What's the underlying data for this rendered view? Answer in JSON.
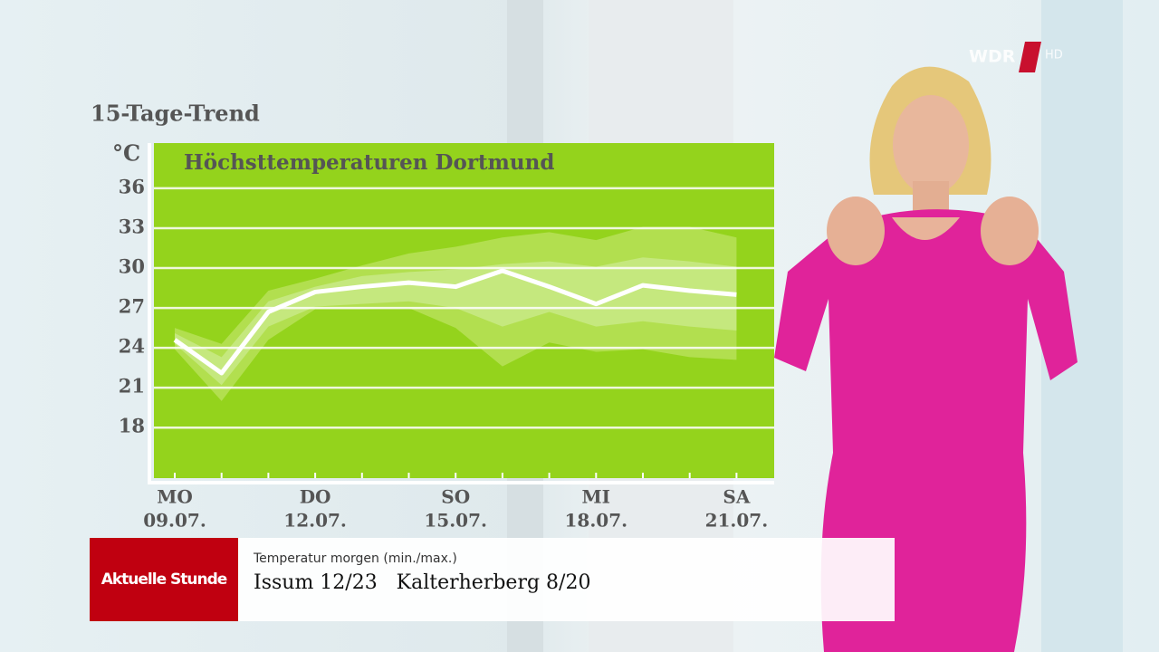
{
  "chart_data": {
    "type": "line",
    "heading": "15-Tage-Trend",
    "y_unit": "°C",
    "title": "Höchsttemperaturen Dortmund",
    "categories": [
      "09.07.",
      null,
      null,
      "12.07.",
      null,
      null,
      "15.07.",
      null,
      null,
      "18.07.",
      null,
      null,
      "21.07."
    ],
    "weekdays": [
      "MO",
      null,
      null,
      "DO",
      null,
      null,
      "SO",
      null,
      null,
      "MI",
      null,
      null,
      "SA"
    ],
    "values": [
      24.6,
      22.1,
      26.7,
      28.2,
      28.6,
      28.9,
      28.6,
      29.8,
      28.6,
      27.3,
      28.7,
      28.3,
      28.0
    ],
    "color": "#ffffff",
    "background": "#94d31c",
    "bands": [
      {
        "color": "#b2df4f",
        "low": [
          23.9,
          20.0,
          24.6,
          26.9,
          26.9,
          27.0,
          25.5,
          22.6,
          24.4,
          23.7,
          23.9,
          23.3,
          23.1
        ],
        "high": [
          25.5,
          24.3,
          28.3,
          29.2,
          30.2,
          31.1,
          31.6,
          32.3,
          32.7,
          32.1,
          33.1,
          33.1,
          32.3
        ]
      },
      {
        "color": "#c5e87e",
        "low": [
          24.3,
          21.2,
          25.6,
          27.1,
          27.3,
          27.5,
          27.0,
          25.6,
          26.7,
          25.6,
          26.0,
          25.6,
          25.3
        ],
        "high": [
          25.1,
          23.3,
          27.5,
          28.6,
          29.4,
          29.7,
          29.9,
          30.3,
          30.5,
          30.1,
          30.8,
          30.5,
          30.1
        ]
      }
    ],
    "ylim": [
      14.2,
      39.4
    ],
    "yticks": [
      18,
      21,
      24,
      27,
      30,
      33,
      36
    ],
    "grid": true
  },
  "lower_third": {
    "brand": "Aktuelle Stunde",
    "caption": "Temperatur morgen (min./max.)",
    "line": "Issum 12/23   Kalterherberg 8/20"
  },
  "logo": {
    "name": "WDR",
    "suffix": "HD"
  }
}
